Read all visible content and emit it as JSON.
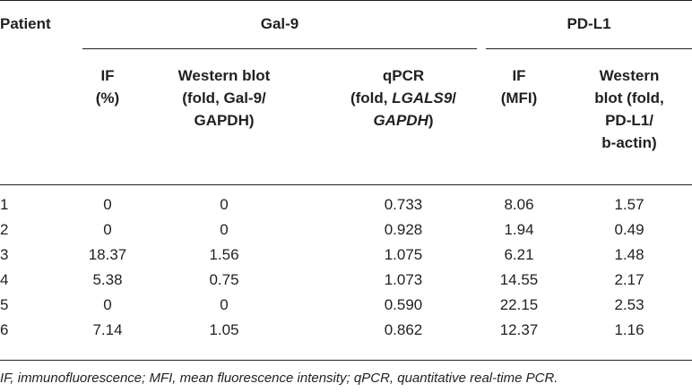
{
  "table": {
    "group_headers": {
      "patient": "Patient",
      "gal9": "Gal-9",
      "pdl1": "PD-L1"
    },
    "columns": {
      "gal9_if": [
        "IF",
        "(%)"
      ],
      "gal9_wb": [
        "Western blot",
        "(fold, Gal-9/",
        "GAPDH)"
      ],
      "gal9_qpcr": {
        "line1": "qPCR",
        "line2_pre": "(fold, ",
        "line2_italic": "LGALS9",
        "line2_post": "/",
        "line3_italic": "GAPDH",
        "line3_post": ")"
      },
      "pdl1_if": [
        "IF",
        "(MFI)"
      ],
      "pdl1_wb": [
        "Western",
        "blot (fold,",
        "PD-L1/",
        "b-actin)"
      ]
    },
    "rows": [
      [
        "1",
        "0",
        "0",
        "0.733",
        "8.06",
        "1.57"
      ],
      [
        "2",
        "0",
        "0",
        "0.928",
        "1.94",
        "0.49"
      ],
      [
        "3",
        "18.37",
        "1.56",
        "1.075",
        "6.21",
        "1.48"
      ],
      [
        "4",
        "5.38",
        "0.75",
        "1.073",
        "14.55",
        "2.17"
      ],
      [
        "5",
        "0",
        "0",
        "0.590",
        "22.15",
        "2.53"
      ],
      [
        "6",
        "7.14",
        "1.05",
        "0.862",
        "12.37",
        "1.16"
      ]
    ],
    "footnote": "IF, immunofluorescence; MFI, mean fluorescence intensity; qPCR, quantitative real-time PCR."
  }
}
